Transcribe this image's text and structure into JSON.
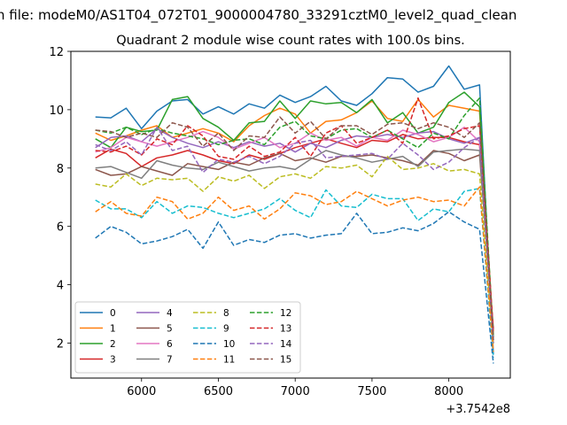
{
  "chart_data": {
    "type": "line",
    "suptitle": "n file: modeM0/AS1T04_072T01_9000004780_33291cztM0_level2_quad_clean",
    "title": "Quadrant 2 module wise count rates with 100.0s bins.",
    "xlabel": "",
    "ylabel": "",
    "x_offset_label": "+3.7542e8",
    "xlim": [
      5540,
      8400
    ],
    "ylim": [
      0.8,
      12
    ],
    "x_ticks": [
      6000,
      6500,
      7000,
      7500,
      8000
    ],
    "y_ticks": [
      2,
      4,
      6,
      8,
      10,
      12
    ],
    "grid": false,
    "legend_position": "lower-left",
    "legend_columns": 4,
    "x": [
      5700,
      5800,
      5900,
      6000,
      6100,
      6200,
      6300,
      6400,
      6500,
      6600,
      6700,
      6800,
      6900,
      7000,
      7100,
      7200,
      7300,
      7400,
      7500,
      7600,
      7700,
      7800,
      7900,
      8000,
      8100,
      8200,
      8290
    ],
    "series": [
      {
        "name": "0",
        "color": "#1f77b4",
        "dash": "solid",
        "values": [
          9.75,
          9.72,
          10.05,
          9.35,
          9.95,
          10.3,
          10.35,
          9.85,
          10.1,
          9.85,
          10.2,
          10.05,
          10.5,
          10.25,
          10.45,
          10.8,
          10.3,
          10.15,
          10.55,
          11.1,
          11.05,
          10.6,
          10.8,
          11.5,
          10.7,
          10.85,
          1.6
        ]
      },
      {
        "name": "1",
        "color": "#ff7f0e",
        "dash": "solid",
        "values": [
          9.2,
          8.95,
          9.1,
          9.3,
          9.45,
          9.05,
          9.2,
          9.35,
          9.2,
          8.9,
          9.45,
          9.8,
          10.05,
          9.85,
          9.2,
          9.6,
          9.65,
          9.9,
          10.3,
          9.7,
          9.6,
          10.35,
          9.75,
          10.15,
          10.05,
          9.95,
          2.2
        ]
      },
      {
        "name": "2",
        "color": "#2ca02c",
        "dash": "solid",
        "values": [
          9.0,
          8.7,
          9.4,
          9.25,
          9.3,
          10.35,
          10.45,
          9.7,
          9.4,
          8.95,
          9.55,
          9.6,
          10.3,
          9.7,
          10.3,
          10.2,
          10.25,
          9.9,
          10.35,
          9.55,
          9.9,
          9.2,
          9.4,
          10.25,
          10.6,
          10.1,
          2.0
        ]
      },
      {
        "name": "3",
        "color": "#d62728",
        "dash": "solid",
        "values": [
          8.35,
          8.65,
          8.5,
          8.05,
          8.35,
          8.45,
          8.6,
          8.45,
          8.25,
          8.15,
          8.45,
          8.3,
          8.5,
          8.7,
          8.85,
          9.0,
          8.85,
          8.7,
          8.95,
          8.9,
          9.15,
          9.0,
          9.05,
          9.05,
          8.9,
          8.8,
          2.3
        ]
      },
      {
        "name": "4",
        "color": "#9467bd",
        "dash": "solid",
        "values": [
          8.7,
          9.05,
          9.1,
          8.9,
          9.35,
          9.05,
          8.85,
          8.7,
          8.9,
          8.7,
          8.9,
          8.75,
          8.85,
          8.55,
          8.85,
          8.7,
          8.95,
          9.1,
          9.05,
          9.15,
          9.05,
          9.2,
          9.25,
          9.0,
          8.85,
          9.05,
          2.1
        ]
      },
      {
        "name": "5",
        "color": "#8c564b",
        "dash": "solid",
        "values": [
          7.95,
          7.75,
          7.8,
          8.05,
          7.9,
          7.75,
          8.15,
          8.05,
          7.95,
          8.2,
          8.1,
          8.35,
          8.5,
          8.25,
          8.35,
          8.2,
          8.4,
          8.4,
          8.45,
          8.35,
          8.25,
          8.1,
          8.6,
          8.5,
          8.25,
          8.45,
          2.5
        ]
      },
      {
        "name": "6",
        "color": "#e377c2",
        "dash": "solid",
        "values": [
          8.55,
          8.7,
          9.05,
          8.9,
          8.75,
          8.9,
          9.05,
          9.25,
          9.05,
          8.65,
          8.85,
          9.05,
          8.7,
          8.85,
          9.2,
          8.95,
          9.05,
          8.75,
          9.05,
          8.95,
          9.3,
          9.15,
          8.9,
          9.05,
          9.4,
          8.9,
          2.0
        ]
      },
      {
        "name": "7",
        "color": "#7f7f7f",
        "dash": "solid",
        "values": [
          8.0,
          8.05,
          7.85,
          7.65,
          8.25,
          8.1,
          8.0,
          7.95,
          8.2,
          8.05,
          7.9,
          8.0,
          8.05,
          7.95,
          8.3,
          8.6,
          8.45,
          8.35,
          8.2,
          8.3,
          8.4,
          8.05,
          8.55,
          8.6,
          8.65,
          8.6,
          2.2
        ]
      },
      {
        "name": "8",
        "color": "#bcbd22",
        "dash": "dashed",
        "values": [
          7.45,
          7.35,
          7.8,
          7.4,
          7.65,
          7.6,
          7.65,
          7.2,
          7.7,
          7.55,
          7.75,
          7.3,
          7.7,
          7.8,
          7.65,
          8.05,
          8.0,
          8.1,
          7.7,
          8.4,
          7.95,
          8.0,
          8.15,
          7.9,
          7.95,
          7.8,
          1.9
        ]
      },
      {
        "name": "9",
        "color": "#17becf",
        "dash": "dashed",
        "values": [
          6.9,
          6.6,
          6.6,
          6.3,
          6.85,
          6.45,
          6.7,
          6.65,
          6.45,
          6.3,
          6.45,
          6.6,
          6.95,
          6.55,
          6.3,
          7.25,
          6.7,
          6.65,
          7.1,
          6.95,
          6.95,
          6.2,
          6.6,
          6.5,
          7.2,
          7.3,
          1.5
        ]
      },
      {
        "name": "10",
        "color": "#1f77b4",
        "dash": "dashed",
        "values": [
          5.6,
          6.0,
          5.8,
          5.4,
          5.5,
          5.65,
          5.9,
          5.25,
          6.15,
          5.35,
          5.55,
          5.45,
          5.7,
          5.75,
          5.6,
          5.7,
          5.75,
          6.45,
          5.75,
          5.8,
          5.95,
          5.85,
          6.1,
          6.5,
          6.15,
          5.9,
          1.3
        ]
      },
      {
        "name": "11",
        "color": "#ff7f0e",
        "dash": "dashed",
        "values": [
          6.5,
          6.85,
          6.45,
          6.35,
          7.0,
          6.85,
          6.25,
          6.45,
          7.0,
          6.55,
          6.7,
          6.25,
          6.6,
          7.15,
          7.05,
          6.75,
          6.85,
          7.2,
          6.95,
          6.7,
          6.9,
          7.0,
          6.85,
          6.9,
          6.7,
          7.35,
          1.7
        ]
      },
      {
        "name": "12",
        "color": "#2ca02c",
        "dash": "dashed",
        "values": [
          9.3,
          9.2,
          9.4,
          9.15,
          9.35,
          9.2,
          9.1,
          9.0,
          8.8,
          8.95,
          9.0,
          8.8,
          9.4,
          9.6,
          9.1,
          9.0,
          9.3,
          9.35,
          9.05,
          9.3,
          9.0,
          8.7,
          9.2,
          9.0,
          9.8,
          10.4,
          2.2
        ]
      },
      {
        "name": "13",
        "color": "#d62728",
        "dash": "dashed",
        "values": [
          8.6,
          8.55,
          8.75,
          8.45,
          9.0,
          8.8,
          9.45,
          9.1,
          8.4,
          8.3,
          8.75,
          8.4,
          8.55,
          9.05,
          8.4,
          9.2,
          9.45,
          8.85,
          9.05,
          9.3,
          8.85,
          10.4,
          9.0,
          9.1,
          9.35,
          9.45,
          2.4
        ]
      },
      {
        "name": "14",
        "color": "#9467bd",
        "dash": "dashed",
        "values": [
          8.8,
          8.6,
          8.9,
          8.45,
          9.4,
          8.6,
          8.75,
          7.85,
          8.3,
          8.2,
          8.4,
          8.15,
          8.4,
          8.85,
          8.95,
          8.35,
          8.4,
          8.45,
          8.5,
          8.3,
          8.85,
          8.45,
          7.95,
          8.2,
          8.7,
          9.05,
          2.0
        ]
      },
      {
        "name": "15",
        "color": "#8c564b",
        "dash": "dashed",
        "values": [
          9.3,
          9.25,
          9.05,
          9.2,
          9.05,
          9.55,
          9.4,
          8.75,
          9.2,
          8.6,
          9.1,
          9.05,
          9.75,
          9.2,
          9.6,
          9.0,
          9.45,
          9.45,
          9.15,
          9.5,
          9.55,
          9.35,
          9.55,
          9.4,
          9.05,
          9.55,
          2.1
        ]
      }
    ]
  }
}
